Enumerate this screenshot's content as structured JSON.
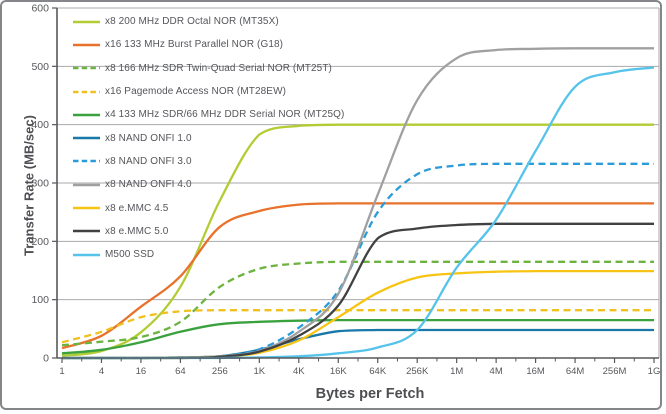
{
  "figure": {
    "title": "",
    "x_axis_label": "Bytes per Fetch",
    "y_axis_label": "Transfer Rate (MB/sec)"
  },
  "styles": {
    "background": "#ffffff",
    "frame_border": "#848689",
    "grid_color": "#a9aaac",
    "axis_color": "#57585b",
    "tick_text_color": "#57585b",
    "legend_text_color": "#55565a"
  },
  "chart_data": {
    "type": "line",
    "x_scale": "log",
    "xlabel": "Bytes per Fetch",
    "ylabel": "Transfer Rate (MB/sec)",
    "categories": [
      "1",
      "4",
      "16",
      "64",
      "256",
      "1K",
      "4K",
      "16K",
      "64K",
      "256K",
      "1M",
      "4M",
      "16M",
      "64M",
      "256M",
      "1G"
    ],
    "y_ticks": [
      0,
      100,
      200,
      300,
      400,
      500,
      600
    ],
    "ylim": [
      0,
      600
    ],
    "grid": "horizontal",
    "legend_position": "top-left-inside",
    "series": [
      {
        "name": "x8 200 MHz DDR Octal NOR (MT35X)",
        "color": "#b2cc34",
        "dash": "solid",
        "values": [
          4,
          12,
          44,
          122,
          270,
          383,
          398,
          400,
          400,
          400,
          400,
          400,
          400,
          400,
          400,
          400
        ]
      },
      {
        "name": "x16 133 MHz Burst Parallel NOR (G18)",
        "color": "#e8712b",
        "dash": "solid",
        "values": [
          17,
          38,
          88,
          140,
          225,
          252,
          263,
          265,
          265,
          265,
          265,
          265,
          265,
          265,
          265,
          265
        ]
      },
      {
        "name": "x8 166 MHz SDR Twin-Quad Serial NOR (MT25T)",
        "color": "#6cb33f",
        "dash": "dashed",
        "values": [
          22,
          28,
          36,
          62,
          122,
          153,
          162,
          165,
          165,
          165,
          165,
          165,
          165,
          165,
          165,
          165
        ]
      },
      {
        "name": "x16 Pagemode Access  NOR (MT28EW)",
        "color": "#f0c11e",
        "dash": "dashed",
        "values": [
          27,
          45,
          70,
          80,
          82,
          82,
          82,
          82,
          82,
          82,
          82,
          82,
          82,
          82,
          82,
          82
        ]
      },
      {
        "name": "x4 133 MHz SDR/66 MHz DDR Serial NOR (MT25Q)",
        "color": "#3aa13f",
        "dash": "solid",
        "values": [
          8,
          14,
          27,
          45,
          58,
          62,
          64,
          65,
          65,
          65,
          65,
          65,
          65,
          65,
          65,
          65
        ]
      },
      {
        "name": "x8 NAND ONFI 1.0",
        "color": "#1878a8",
        "dash": "solid",
        "values": [
          0,
          0,
          0,
          1,
          3,
          14,
          32,
          46,
          48,
          48,
          48,
          48,
          48,
          48,
          48,
          48
        ]
      },
      {
        "name": "x8 NAND ONFI 3.0",
        "color": "#2b9cd8",
        "dash": "dashed",
        "values": [
          0,
          0,
          0,
          1,
          3,
          15,
          52,
          115,
          250,
          315,
          330,
          333,
          333,
          333,
          333,
          333
        ]
      },
      {
        "name": "x8 NAND ONFI 4.0",
        "color": "#a0a0a0",
        "dash": "solid",
        "values": [
          0,
          0,
          0,
          1,
          3,
          12,
          45,
          110,
          280,
          442,
          514,
          528,
          530,
          531,
          531,
          531
        ]
      },
      {
        "name": "x8 e.MMC 4.5",
        "color": "#f7c413",
        "dash": "solid",
        "values": [
          0,
          0,
          0,
          0,
          2,
          9,
          30,
          70,
          112,
          138,
          145,
          148,
          149,
          149,
          149,
          149
        ]
      },
      {
        "name": "x8 e.MMC 5.0",
        "color": "#414042",
        "dash": "solid",
        "values": [
          0,
          0,
          0,
          0,
          2,
          11,
          38,
          90,
          205,
          222,
          228,
          230,
          230,
          230,
          230,
          230
        ]
      },
      {
        "name": "M500 SSD",
        "color": "#55c3ea",
        "dash": "solid",
        "values": [
          0,
          0,
          0,
          0,
          0,
          1,
          3,
          8,
          18,
          48,
          155,
          237,
          355,
          465,
          490,
          498
        ]
      }
    ]
  }
}
